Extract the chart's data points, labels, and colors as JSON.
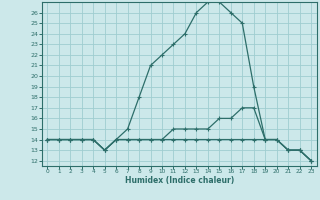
{
  "title": "",
  "xlabel": "Humidex (Indice chaleur)",
  "bg_color": "#cce8ea",
  "grid_color": "#9fcdd0",
  "line_color": "#2d6e6a",
  "xlim": [
    -0.5,
    23.5
  ],
  "ylim": [
    11.5,
    27.0
  ],
  "xticks": [
    0,
    1,
    2,
    3,
    4,
    5,
    6,
    7,
    8,
    9,
    10,
    11,
    12,
    13,
    14,
    15,
    16,
    17,
    18,
    19,
    20,
    21,
    22,
    23
  ],
  "yticks": [
    12,
    13,
    14,
    15,
    16,
    17,
    18,
    19,
    20,
    21,
    22,
    23,
    24,
    25,
    26
  ],
  "line1_x": [
    0,
    1,
    2,
    3,
    4,
    5,
    6,
    7,
    8,
    9,
    10,
    11,
    12,
    13,
    14,
    15,
    16,
    17,
    18,
    19,
    20,
    21,
    22,
    23
  ],
  "line1_y": [
    14,
    14,
    14,
    14,
    14,
    13,
    14,
    15,
    18,
    21,
    22,
    23,
    24,
    26,
    27,
    27,
    26,
    25,
    19,
    14,
    14,
    13,
    13,
    12
  ],
  "line2_x": [
    0,
    1,
    2,
    3,
    4,
    5,
    6,
    7,
    8,
    9,
    10,
    11,
    12,
    13,
    14,
    15,
    16,
    17,
    18,
    19,
    20,
    21,
    22,
    23
  ],
  "line2_y": [
    14,
    14,
    14,
    14,
    14,
    13,
    14,
    14,
    14,
    14,
    14,
    15,
    15,
    15,
    15,
    16,
    16,
    17,
    17,
    14,
    14,
    13,
    13,
    12
  ],
  "line3_x": [
    0,
    1,
    2,
    3,
    4,
    5,
    6,
    7,
    8,
    9,
    10,
    11,
    12,
    13,
    14,
    15,
    16,
    17,
    18,
    19,
    20,
    21,
    22,
    23
  ],
  "line3_y": [
    14,
    14,
    14,
    14,
    14,
    13,
    14,
    14,
    14,
    14,
    14,
    14,
    14,
    14,
    14,
    14,
    14,
    14,
    14,
    14,
    14,
    13,
    13,
    12
  ]
}
